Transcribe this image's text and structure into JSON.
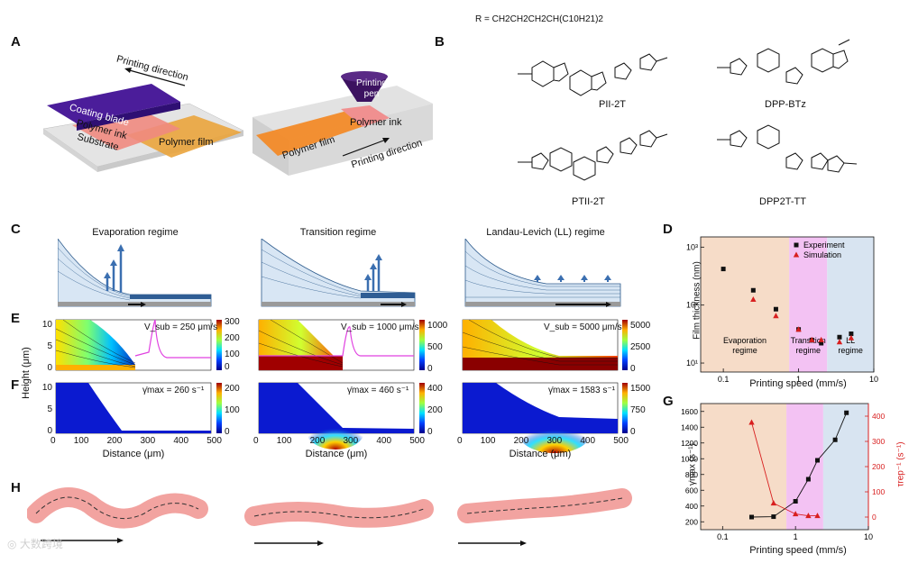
{
  "panels": {
    "a": "A",
    "b": "B",
    "c": "C",
    "d": "D",
    "e": "E",
    "f": "F",
    "g": "G",
    "h": "H"
  },
  "panel_a": {
    "left": {
      "direction": "Printing direction",
      "blade": "Coating blade",
      "ink": "Polymer ink",
      "substrate": "Substrate",
      "film": "Polymer film"
    },
    "right": {
      "pen_line1": "Printing",
      "pen_line2": "pen",
      "ink": "Polymer ink",
      "film": "Polymer film",
      "direction": "Printing direction"
    }
  },
  "panel_b": {
    "r_group": "R = CH2CH2CH2CH(C10H21)2",
    "molecules": [
      "PII-2T",
      "DPP-BTz",
      "PTII-2T",
      "DPP2T-TT"
    ]
  },
  "panel_c": {
    "regimes": [
      "Evaporation regime",
      "Transition regime",
      "Landau-Levich (LL) regime"
    ]
  },
  "panel_e": {
    "speeds": [
      "V_sub = 250 μm/s",
      "V_sub = 1000 μm/s",
      "V_sub = 5000 μm/s"
    ],
    "colorbars": [
      [
        "300",
        "200",
        "100",
        "0"
      ],
      [
        "1000",
        "500",
        "0"
      ],
      [
        "5000",
        "2500",
        "0"
      ]
    ]
  },
  "panel_f": {
    "shear": [
      "γ̇max = 260 s⁻¹",
      "γ̇max = 460 s⁻¹",
      "γ̇max = 1583 s⁻¹"
    ],
    "colorbars": [
      [
        "200",
        "100",
        "0"
      ],
      [
        "400",
        "200",
        "0"
      ],
      [
        "1500",
        "750",
        "0"
      ]
    ]
  },
  "ef_axes": {
    "ylabel": "Height (μm)",
    "xlabel": "Distance (μm)",
    "xticks": [
      "0",
      "100",
      "200",
      "300",
      "400",
      "500"
    ],
    "yticks": [
      "10",
      "5",
      "0"
    ]
  },
  "chart_data": [
    {
      "type": "scatter",
      "panel": "D",
      "xlabel": "Printing speed (mm/s)",
      "ylabel": "Film thickness (nm)",
      "xscale": "log",
      "yscale": "log",
      "xlim": [
        0.05,
        10
      ],
      "ylim": [
        7,
        1500
      ],
      "xticks": [
        "0.1",
        "1",
        "10"
      ],
      "yticks": [
        "10¹",
        "10²",
        "10³"
      ],
      "regimes": [
        {
          "label": "Evaporation regime",
          "line1": "Evaporation",
          "line2": "regime",
          "from": 0.05,
          "to": 0.75,
          "color": "#f6dcc8"
        },
        {
          "label": "Transition regime",
          "line1": "Transition",
          "line2": "regime",
          "from": 0.75,
          "to": 2.4,
          "color": "#f3c2f3"
        },
        {
          "label": "LL regime",
          "line1": "LL",
          "line2": "regime",
          "from": 2.4,
          "to": 10,
          "color": "#d8e4f1"
        }
      ],
      "series": [
        {
          "name": "Experiment",
          "marker": "square",
          "color": "#111111",
          "x": [
            0.1,
            0.25,
            0.5,
            1,
            1.5,
            2,
            3.5,
            5
          ],
          "y": [
            420,
            180,
            85,
            38,
            25,
            22,
            28,
            32
          ]
        },
        {
          "name": "Simulation",
          "marker": "triangle",
          "color": "#d81f1f",
          "x": [
            0.25,
            0.5,
            1,
            1.5,
            2,
            3.5,
            5
          ],
          "y": [
            125,
            65,
            38,
            25,
            25,
            23,
            27
          ]
        }
      ]
    },
    {
      "type": "line",
      "panel": "G",
      "xlabel": "Printing speed (mm/s)",
      "ylabel_left": "γ̇max (s⁻¹)",
      "ylabel_right": "τrep⁻¹ (s⁻¹)",
      "xscale": "log",
      "xlim": [
        0.05,
        10
      ],
      "ylim_left": [
        100,
        1700
      ],
      "ylim_right": [
        -50,
        450
      ],
      "yticks_left": [
        "200",
        "400",
        "600",
        "800",
        "1000",
        "1200",
        "1400",
        "1600"
      ],
      "yticks_right": [
        "0",
        "100",
        "200",
        "300",
        "400"
      ],
      "xticks": [
        "0.1",
        "1",
        "10"
      ],
      "series": [
        {
          "name": "γ̇max",
          "axis": "left",
          "color": "#111111",
          "marker": "square",
          "x": [
            0.25,
            0.5,
            1,
            1.5,
            2,
            3.5,
            5
          ],
          "y": [
            260,
            265,
            460,
            740,
            980,
            1240,
            1583
          ]
        },
        {
          "name": "τrep⁻¹",
          "axis": "right",
          "color": "#d81f1f",
          "marker": "triangle",
          "x": [
            0.25,
            0.5,
            1,
            1.5,
            2
          ],
          "y": [
            375,
            55,
            12,
            5,
            5
          ]
        }
      ]
    }
  ],
  "watermark": "大数跨境"
}
